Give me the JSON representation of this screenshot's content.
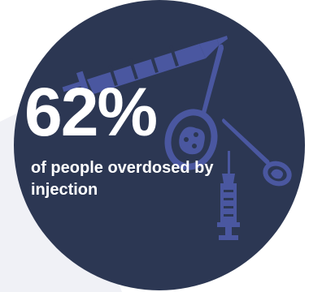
{
  "stat": {
    "value": "62%",
    "caption": "of people overdosed by injection"
  },
  "illustration": {
    "icons": [
      "syringe-icon",
      "spoon-icon",
      "spoon-icon",
      "syringe-icon"
    ]
  },
  "colors": {
    "circle": "#2c3753",
    "illustration": "#4a57a0",
    "text": "#ffffff",
    "background_accent": "#f0f1f6"
  }
}
